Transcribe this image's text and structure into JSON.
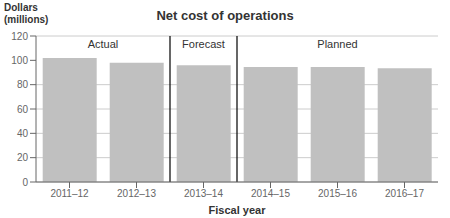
{
  "chart_data": {
    "type": "bar",
    "title": "Net cost of operations",
    "ylabel": "Dollars\n(millions)",
    "xlabel": "Fiscal year",
    "categories": [
      "2011–12",
      "2012–13",
      "2013–14",
      "2014–15",
      "2015–16",
      "2016–17"
    ],
    "values": [
      102,
      98,
      96,
      94.5,
      94.5,
      93.5
    ],
    "color": "#c0c0c0",
    "ylim": [
      0,
      120
    ],
    "yticks": [
      0,
      20,
      40,
      60,
      80,
      100,
      120
    ],
    "grid": true,
    "annotations": [
      {
        "text": "Actual",
        "categories": [
          "2011–12",
          "2012–13"
        ]
      },
      {
        "text": "Forecast",
        "categories": [
          "2013–14"
        ]
      },
      {
        "text": "Planned",
        "categories": [
          "2014–15",
          "2015–16",
          "2016–17"
        ]
      }
    ]
  }
}
